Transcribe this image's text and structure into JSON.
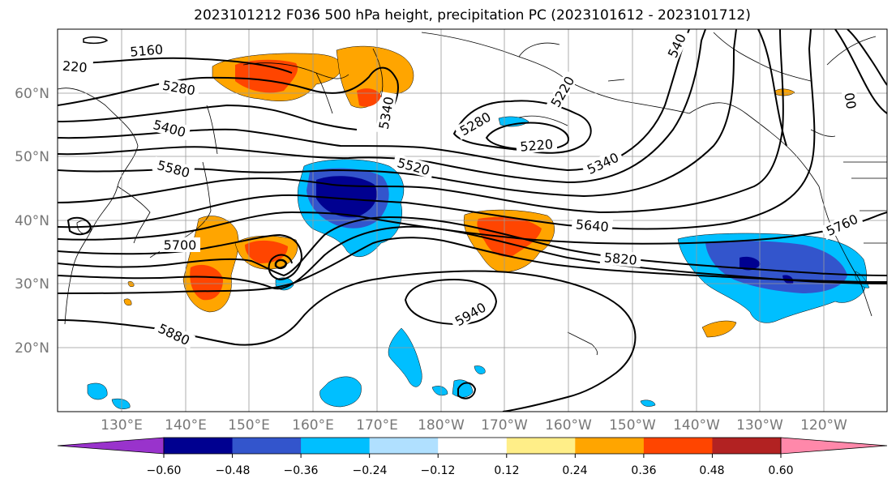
{
  "title": "2023101212 F036 500 hPa height, precipitation PC (2023101612 - 2023101712)",
  "lat_labels": [
    "60°N",
    "50°N",
    "40°N",
    "30°N",
    "20°N"
  ],
  "lon_labels": [
    "130°E",
    "140°E",
    "150°E",
    "160°E",
    "170°E",
    "180°W",
    "170°W",
    "160°W",
    "150°W",
    "140°W",
    "130°W",
    "120°W"
  ],
  "contour_labels": [
    "220",
    "5160",
    "5280",
    "5400",
    "5580",
    "5520",
    "5280",
    "5220",
    "5220",
    "5340",
    "540",
    "5340",
    "00",
    "5640",
    "5760",
    "5700",
    "5820",
    "5940",
    "5880"
  ],
  "colorbar": {
    "colors": [
      "#9933cc",
      "#000090",
      "#3355cc",
      "#00bfff",
      "#b0e0ff",
      "#ffffff",
      "#ffee88",
      "#ffa500",
      "#ff4500",
      "#b22222",
      "#ff88aa"
    ],
    "ticks": [
      "−0.60",
      "−0.48",
      "−0.36",
      "−0.24",
      "−0.12",
      "0.12",
      "0.24",
      "0.36",
      "0.48",
      "0.60"
    ]
  }
}
